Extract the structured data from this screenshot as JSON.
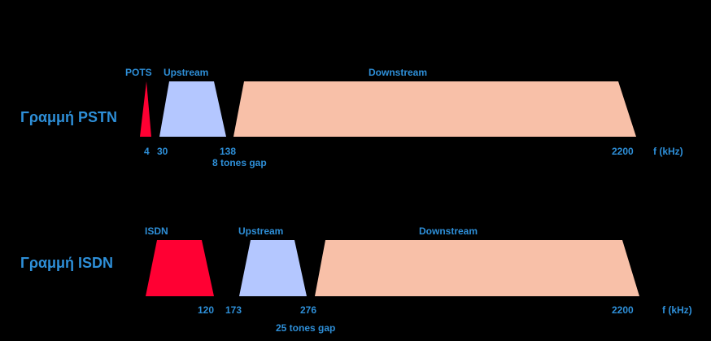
{
  "colors": {
    "background": "#000000",
    "text": "#2e8fd8",
    "pots_isdn": "#ff0033",
    "upstream": "#b4c7ff",
    "downstream": "#f8c0a8"
  },
  "unit_label": "f (kHz)",
  "rows": [
    {
      "label": "Γραμμή PSTN",
      "bands": [
        {
          "name": "POTS",
          "shape": "narrow-triangle",
          "color_key": "pots_isdn"
        },
        {
          "name": "Upstream",
          "shape": "trapezoid",
          "color_key": "upstream"
        },
        {
          "name": "Downstream",
          "shape": "trapezoid",
          "color_key": "downstream"
        }
      ],
      "ticks": [
        "4",
        "30",
        "138",
        "2200"
      ],
      "gap_note": "8 tones gap"
    },
    {
      "label": "Γραμμή ISDN",
      "bands": [
        {
          "name": "ISDN",
          "shape": "trapezoid",
          "color_key": "pots_isdn"
        },
        {
          "name": "Upstream",
          "shape": "trapezoid",
          "color_key": "upstream"
        },
        {
          "name": "Downstream",
          "shape": "trapezoid",
          "color_key": "downstream"
        }
      ],
      "ticks": [
        "120",
        "173",
        "276",
        "2200"
      ],
      "gap_note": "25 tones gap"
    }
  ]
}
